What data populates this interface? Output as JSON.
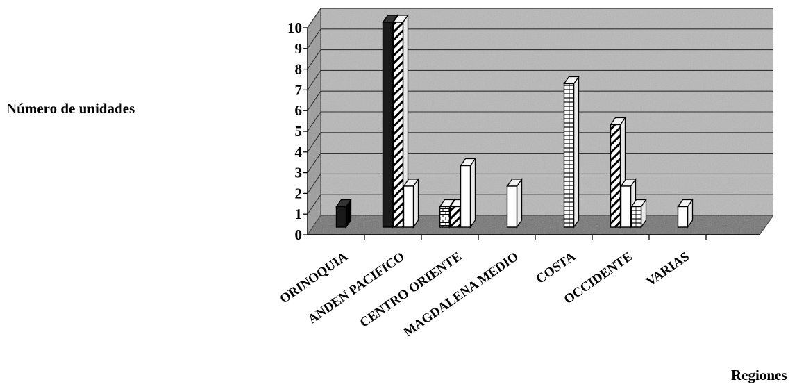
{
  "chart_data": {
    "type": "bar",
    "style": "3d-clustered-column",
    "ylabel": "Número de unidades",
    "xlabel": "Regiones",
    "ylim": [
      0,
      10
    ],
    "yticks": [
      "0",
      "1",
      "2",
      "3",
      "4",
      "5",
      "6",
      "7",
      "8",
      "9",
      "10"
    ],
    "grid": true,
    "categories": [
      "ORINOQUIA",
      "ANDEN PACIFICO",
      "CENTRO ORIENTE",
      "MAGDALENA MEDIO",
      "COSTA",
      "OCCIDENTE",
      "VARIAS"
    ],
    "series": [
      {
        "values": [
          1,
          10,
          0,
          0,
          0,
          0,
          0
        ],
        "pattern": "solid-dark",
        "color": "#1a1a1a"
      },
      {
        "values": [
          0,
          0,
          1,
          0,
          0,
          0,
          0
        ],
        "pattern": "brick",
        "color": "#ffffff"
      },
      {
        "values": [
          0,
          10,
          1,
          0,
          0,
          5,
          0
        ],
        "pattern": "diagonal",
        "color": "#ffffff"
      },
      {
        "values": [
          0,
          2,
          3,
          2,
          0,
          2,
          1
        ],
        "pattern": "plain",
        "color": "#ffffff"
      },
      {
        "values": [
          0,
          0,
          0,
          0,
          7,
          1,
          0
        ],
        "pattern": "horizontal-lines",
        "color": "#ffffff"
      }
    ],
    "colors": {
      "wall": "#b8b8b8",
      "floor": "#6e6e6e",
      "gridline": "#333333"
    }
  }
}
